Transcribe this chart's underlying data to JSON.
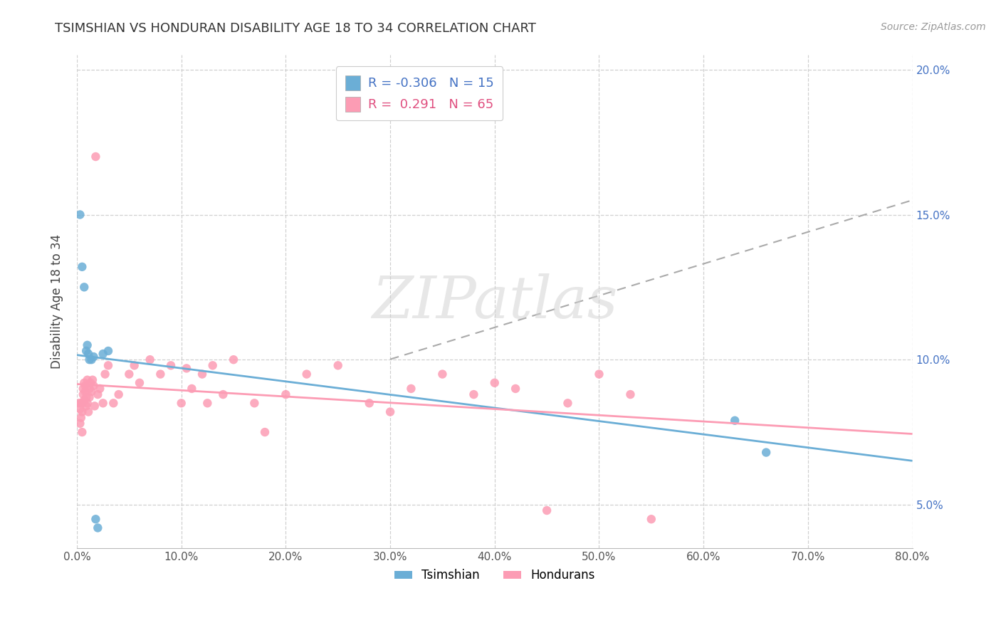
{
  "title": "TSIMSHIAN VS HONDURAN DISABILITY AGE 18 TO 34 CORRELATION CHART",
  "source": "Source: ZipAtlas.com",
  "ylabel": "Disability Age 18 to 34",
  "xlim": [
    0.0,
    80.0
  ],
  "ylim_low": 3.5,
  "ylim_high": 20.5,
  "blue_color": "#6baed6",
  "pink_color": "#fc9cb4",
  "blue_R": -0.306,
  "blue_N": 15,
  "pink_R": 0.291,
  "pink_N": 65,
  "tsimshian_x": [
    0.3,
    0.5,
    0.7,
    0.9,
    1.0,
    1.1,
    1.2,
    1.4,
    1.6,
    1.8,
    2.0,
    2.5,
    3.0,
    63.0,
    66.0
  ],
  "tsimshian_y": [
    15.0,
    13.2,
    12.5,
    10.3,
    10.5,
    10.2,
    10.0,
    10.0,
    10.1,
    4.5,
    4.2,
    10.2,
    10.3,
    7.9,
    6.8
  ],
  "honduran_x": [
    0.2,
    0.3,
    0.3,
    0.4,
    0.4,
    0.5,
    0.5,
    0.5,
    0.6,
    0.6,
    0.7,
    0.7,
    0.8,
    0.8,
    0.9,
    0.9,
    1.0,
    1.0,
    1.1,
    1.2,
    1.2,
    1.3,
    1.4,
    1.5,
    1.6,
    1.7,
    1.8,
    2.0,
    2.2,
    2.5,
    2.7,
    3.0,
    3.5,
    4.0,
    5.0,
    5.5,
    6.0,
    7.0,
    8.0,
    9.0,
    10.0,
    11.0,
    12.0,
    13.0,
    14.0,
    15.0,
    17.0,
    18.0,
    20.0,
    22.0,
    25.0,
    28.0,
    30.0,
    35.0,
    38.0,
    40.0,
    42.0,
    45.0,
    50.0,
    53.0,
    55.0,
    10.5,
    12.5,
    32.0,
    47.0
  ],
  "honduran_y": [
    8.5,
    7.8,
    8.3,
    8.0,
    8.5,
    8.2,
    8.5,
    7.5,
    8.8,
    9.0,
    8.6,
    9.2,
    8.9,
    9.1,
    8.4,
    8.7,
    8.5,
    9.3,
    8.2,
    9.0,
    8.7,
    9.2,
    8.9,
    9.3,
    9.1,
    8.4,
    17.0,
    8.8,
    9.0,
    8.5,
    9.5,
    9.8,
    8.5,
    8.8,
    9.5,
    9.8,
    9.2,
    10.0,
    9.5,
    9.8,
    8.5,
    9.0,
    9.5,
    9.8,
    8.8,
    10.0,
    8.5,
    7.5,
    8.8,
    9.5,
    9.8,
    8.5,
    8.2,
    9.5,
    8.8,
    9.2,
    9.0,
    4.8,
    9.5,
    8.8,
    4.5,
    9.7,
    8.5,
    9.0,
    8.5
  ],
  "watermark_text": "ZIPatlas",
  "background_color": "#ffffff",
  "grid_color": "#d0d0d0",
  "ytick_right_color": "#4472c4",
  "yticks": [
    5.0,
    10.0,
    15.0,
    20.0
  ],
  "xticks": [
    0,
    10,
    20,
    30,
    40,
    50,
    60,
    70,
    80
  ],
  "title_fontsize": 13,
  "source_fontsize": 10,
  "tick_fontsize": 11,
  "ylabel_fontsize": 12
}
